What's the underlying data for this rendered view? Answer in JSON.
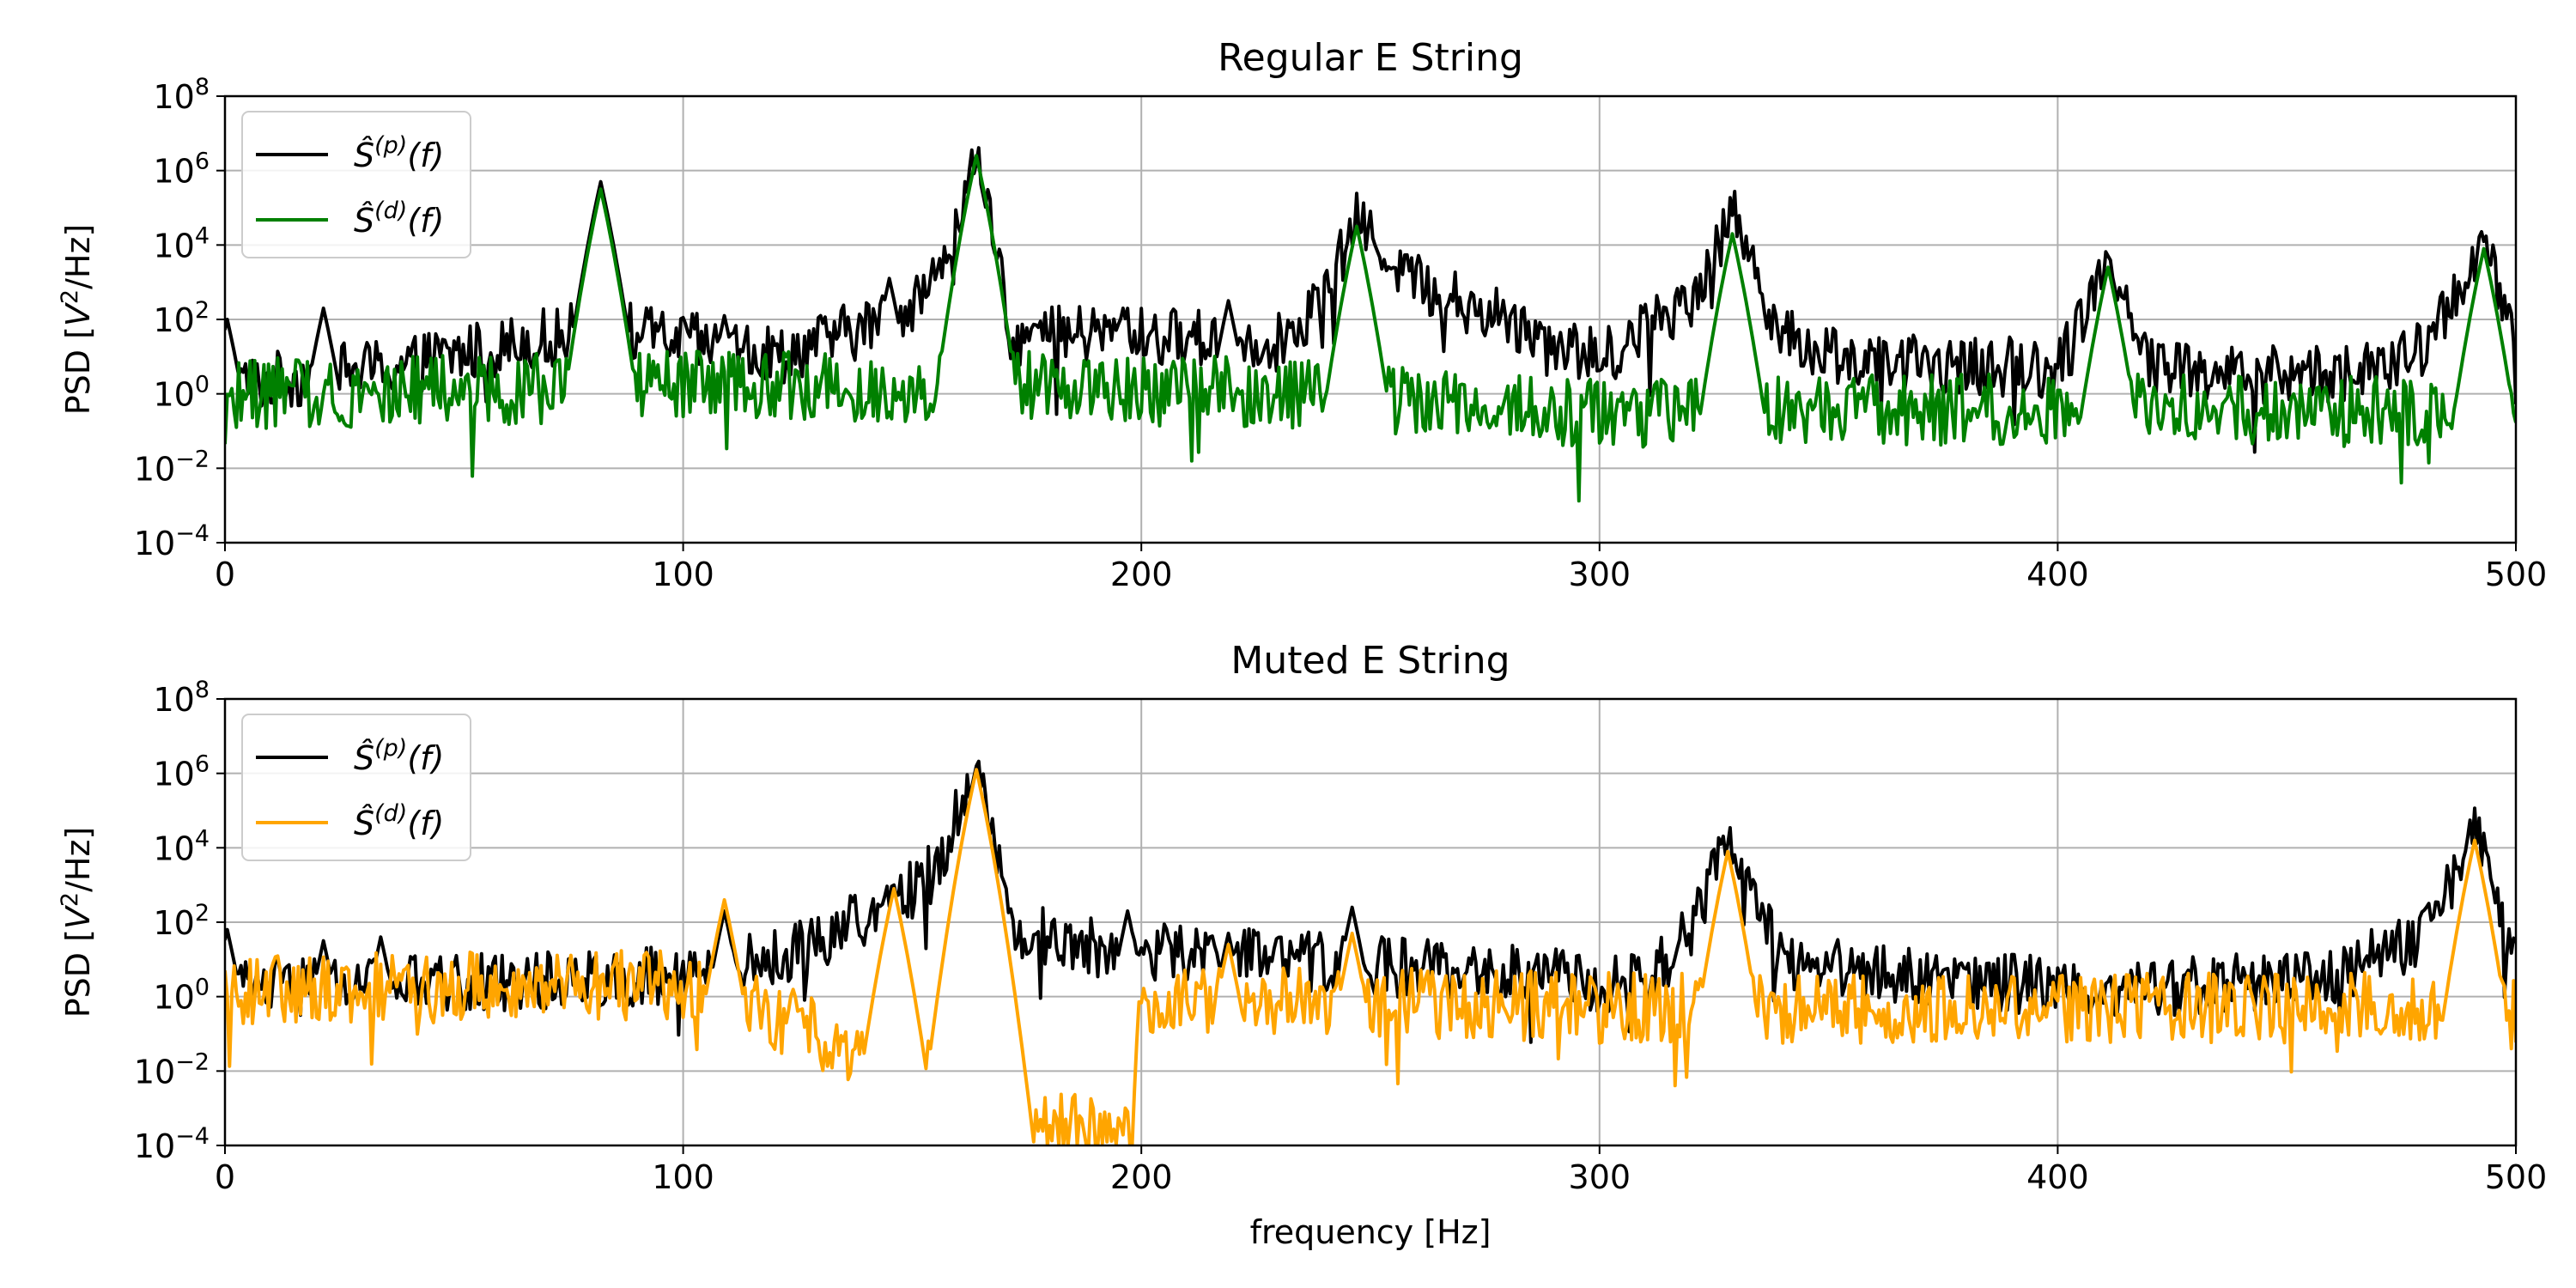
{
  "chart_data": [
    {
      "type": "line",
      "title": "Regular E String",
      "xlabel": "",
      "ylabel": "PSD [V²/Hz]",
      "xlim": [
        0,
        500
      ],
      "ylim_log10": [
        -4,
        8
      ],
      "yscale": "log",
      "grid": true,
      "legend_position": "upper-left",
      "x_ticks": [
        "0",
        "100",
        "200",
        "300",
        "400",
        "500"
      ],
      "y_tick_exponents": [
        "-4",
        "-2",
        "0",
        "2",
        "4",
        "6",
        "8"
      ],
      "y_tick_base": "10",
      "series": [
        {
          "name": "Ŝ(p)(f)",
          "color": "#000000",
          "peaks_log10": [
            [
              0.5,
              2.0
            ],
            [
              21.5,
              2.3
            ],
            [
              82,
              5.7
            ],
            [
              109,
              2.1
            ],
            [
              145,
              3.1
            ],
            [
              164,
              6.2
            ],
            [
              196,
              2.3
            ],
            [
              219,
              2.5
            ],
            [
              247,
              4.6
            ],
            [
              329,
              4.8
            ],
            [
              411,
              3.7
            ],
            [
              493,
              4.1
            ]
          ],
          "baseline_log10": [
            [
              0,
              0.2
            ],
            [
              40,
              0.8
            ],
            [
              82,
              1.8
            ],
            [
              120,
              1.0
            ],
            [
              145,
              2.0
            ],
            [
              155,
              3.0
            ],
            [
              164,
              6.2
            ],
            [
              172,
              1.5
            ],
            [
              190,
              1.6
            ],
            [
              230,
              1.4
            ],
            [
              240,
              2.6
            ],
            [
              247,
              4.6
            ],
            [
              260,
              3.0
            ],
            [
              280,
              2.0
            ],
            [
              300,
              0.9
            ],
            [
              320,
              2.6
            ],
            [
              329,
              4.8
            ],
            [
              340,
              1.5
            ],
            [
              360,
              0.8
            ],
            [
              400,
              0.7
            ],
            [
              411,
              3.7
            ],
            [
              420,
              0.8
            ],
            [
              440,
              0.5
            ],
            [
              470,
              0.6
            ],
            [
              480,
              1.2
            ],
            [
              493,
              4.1
            ],
            [
              500,
              1.0
            ]
          ]
        },
        {
          "name": "Ŝ(d)(f)",
          "color": "#008000",
          "peaks_log10": [
            [
              82,
              5.5
            ],
            [
              164,
              6.4
            ],
            [
              247,
              4.5
            ],
            [
              329,
              4.3
            ],
            [
              411,
              3.4
            ],
            [
              493,
              3.9
            ]
          ],
          "baseline_log10": [
            [
              0,
              0.0
            ],
            [
              100,
              0.2
            ],
            [
              200,
              0.2
            ],
            [
              300,
              -0.5
            ],
            [
              400,
              -0.4
            ],
            [
              500,
              -0.5
            ]
          ]
        }
      ]
    },
    {
      "type": "line",
      "title": "Muted E String",
      "xlabel": "frequency [Hz]",
      "ylabel": "PSD [V²/Hz]",
      "xlim": [
        0,
        500
      ],
      "ylim_log10": [
        -4,
        8
      ],
      "yscale": "log",
      "grid": true,
      "legend_position": "upper-left",
      "x_ticks": [
        "0",
        "100",
        "200",
        "300",
        "400",
        "500"
      ],
      "y_tick_exponents": [
        "-4",
        "-2",
        "0",
        "2",
        "4",
        "6",
        "8"
      ],
      "y_tick_base": "10",
      "series": [
        {
          "name": "Ŝ(p)(f)",
          "color": "#000000",
          "peaks_log10": [
            [
              0.5,
              1.8
            ],
            [
              21.5,
              1.5
            ],
            [
              34,
              1.6
            ],
            [
              109,
              2.3
            ],
            [
              146,
              3.0
            ],
            [
              164,
              6.2
            ],
            [
              197,
              2.3
            ],
            [
              219,
              1.7
            ],
            [
              246,
              2.4
            ],
            [
              328,
              4.1
            ],
            [
              491,
              4.4
            ]
          ],
          "baseline_log10": [
            [
              0,
              0.2
            ],
            [
              60,
              0.4
            ],
            [
              100,
              0.6
            ],
            [
              120,
              1.0
            ],
            [
              145,
              2.4
            ],
            [
              155,
              3.4
            ],
            [
              164,
              6.2
            ],
            [
              172,
              1.8
            ],
            [
              190,
              1.3
            ],
            [
              230,
              1.0
            ],
            [
              280,
              0.6
            ],
            [
              310,
              0.3
            ],
            [
              320,
              1.8
            ],
            [
              328,
              4.1
            ],
            [
              340,
              1.0
            ],
            [
              380,
              0.4
            ],
            [
              420,
              0.2
            ],
            [
              460,
              0.6
            ],
            [
              480,
              1.6
            ],
            [
              491,
              4.4
            ],
            [
              500,
              0.8
            ]
          ]
        },
        {
          "name": "Ŝ(d)(f)",
          "color": "#ffa500",
          "peaks_log10": [
            [
              109,
              2.6
            ],
            [
              146,
              2.9
            ],
            [
              164,
              6.1
            ],
            [
              219,
              1.4
            ],
            [
              246,
              1.7
            ],
            [
              328,
              3.9
            ],
            [
              491,
              4.2
            ]
          ],
          "baseline_log10": [
            [
              0,
              0.2
            ],
            [
              100,
              0.3
            ],
            [
              198,
              -4.0
            ],
            [
              200,
              0.0
            ],
            [
              300,
              -0.3
            ],
            [
              400,
              -0.3
            ],
            [
              500,
              -0.3
            ]
          ]
        }
      ]
    }
  ]
}
